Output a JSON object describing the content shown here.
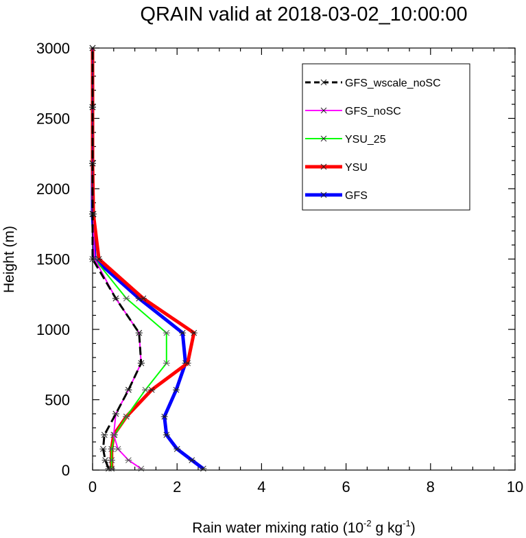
{
  "chart_data": {
    "type": "line",
    "title": "QRAIN valid at 2018-03-02_10:00:00",
    "xlabel": "Rain water mixing ratio (10",
    "xlabel_exp1": "-2",
    "xlabel_mid": " g kg",
    "xlabel_exp2": "-1",
    "xlabel_end": ")",
    "ylabel": "Height (m)",
    "xlim": [
      0,
      10
    ],
    "ylim": [
      0,
      3000
    ],
    "x_ticks": [
      0,
      2,
      4,
      6,
      8,
      10
    ],
    "y_ticks": [
      0,
      500,
      1000,
      1500,
      2000,
      2500,
      3000
    ],
    "x_tick_labels": [
      "0",
      "2",
      "4",
      "6",
      "8",
      "10"
    ],
    "y_tick_labels": [
      "0",
      "500",
      "1000",
      "1500",
      "2000",
      "2500",
      "3000"
    ],
    "legend_position": "top-right",
    "series": [
      {
        "name": "GFS",
        "color": "#0000ff",
        "width": 5,
        "dash": "none",
        "points": [
          [
            2.62,
            10
          ],
          [
            2.35,
            70
          ],
          [
            2.0,
            150
          ],
          [
            1.75,
            250
          ],
          [
            1.7,
            380
          ],
          [
            1.98,
            570
          ],
          [
            2.2,
            760
          ],
          [
            2.13,
            975
          ],
          [
            1.1,
            1220
          ],
          [
            0.05,
            1500
          ],
          [
            0.0,
            1820
          ],
          [
            0.0,
            2180
          ],
          [
            0.0,
            2580
          ],
          [
            0.0,
            3000
          ]
        ]
      },
      {
        "name": "YSU",
        "color": "#ff0000",
        "width": 5,
        "dash": "none",
        "points": [
          [
            0.45,
            10
          ],
          [
            0.45,
            70
          ],
          [
            0.45,
            150
          ],
          [
            0.5,
            250
          ],
          [
            0.8,
            380
          ],
          [
            1.4,
            570
          ],
          [
            2.25,
            760
          ],
          [
            2.4,
            975
          ],
          [
            1.2,
            1220
          ],
          [
            0.15,
            1500
          ],
          [
            0.02,
            1820
          ],
          [
            0.0,
            2180
          ],
          [
            0.0,
            2580
          ],
          [
            0.0,
            3000
          ]
        ]
      },
      {
        "name": "YSU_25",
        "color": "#00ff00",
        "width": 2,
        "dash": "none",
        "points": [
          [
            0.45,
            10
          ],
          [
            0.45,
            70
          ],
          [
            0.45,
            150
          ],
          [
            0.52,
            250
          ],
          [
            0.8,
            380
          ],
          [
            1.25,
            570
          ],
          [
            1.75,
            760
          ],
          [
            1.75,
            975
          ],
          [
            0.8,
            1220
          ],
          [
            0.05,
            1500
          ],
          [
            0.0,
            1820
          ],
          [
            0.0,
            2180
          ],
          [
            0.0,
            2580
          ],
          [
            0.0,
            3000
          ]
        ]
      },
      {
        "name": "GFS_noSC",
        "color": "#ff00ff",
        "width": 2,
        "dash": "none",
        "points": [
          [
            1.15,
            10
          ],
          [
            0.85,
            70
          ],
          [
            0.6,
            150
          ],
          [
            0.5,
            250
          ],
          [
            0.55,
            400
          ],
          [
            0.85,
            570
          ],
          [
            1.15,
            760
          ],
          [
            1.1,
            975
          ],
          [
            0.55,
            1220
          ],
          [
            0.05,
            1500
          ],
          [
            0.0,
            1820
          ],
          [
            0.0,
            2180
          ],
          [
            0.0,
            2580
          ],
          [
            0.0,
            3000
          ]
        ]
      },
      {
        "name": "GFS_wscale_noSC",
        "color": "#000000",
        "width": 3,
        "dash": "12,6",
        "points": [
          [
            0.38,
            10
          ],
          [
            0.3,
            70
          ],
          [
            0.25,
            150
          ],
          [
            0.28,
            250
          ],
          [
            0.55,
            400
          ],
          [
            0.85,
            570
          ],
          [
            1.15,
            760
          ],
          [
            1.1,
            975
          ],
          [
            0.55,
            1220
          ],
          [
            0.0,
            1500
          ],
          [
            0.0,
            1820
          ],
          [
            0.0,
            2180
          ],
          [
            0.0,
            2580
          ],
          [
            0.0,
            3000
          ]
        ]
      }
    ]
  }
}
